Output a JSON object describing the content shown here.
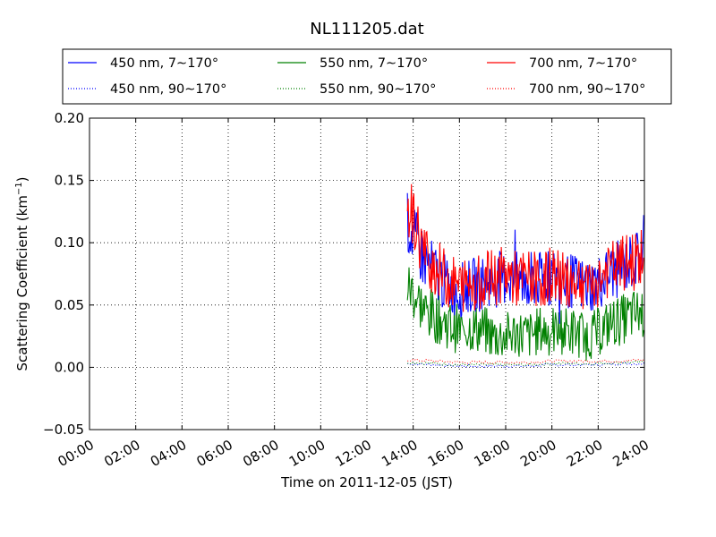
{
  "chart_data": {
    "type": "line",
    "title": "NL111205.dat",
    "xlabel": "Time on 2011-12-05 (JST)",
    "ylabel": "Scattering Coefficient (km",
    "ylabel_sup": "−1",
    "ylabel_end": ")",
    "xlim": [
      "00:00",
      "24:00"
    ],
    "ylim": [
      -0.05,
      0.2
    ],
    "grid": true,
    "legend_position": "top",
    "x_ticks": [
      "00:00",
      "02:00",
      "04:00",
      "06:00",
      "08:00",
      "10:00",
      "12:00",
      "14:00",
      "16:00",
      "18:00",
      "20:00",
      "22:00",
      "24:00"
    ],
    "y_ticks": [
      "−0.05",
      "0.00",
      "0.05",
      "0.10",
      "0.15",
      "0.20"
    ],
    "series": [
      {
        "name": "450 nm, 7∼170°",
        "color": "#0000ff",
        "style": "solid",
        "x": [
          "13:45",
          "14:00",
          "14:30",
          "15:00",
          "15:30",
          "16:00",
          "16:30",
          "17:00",
          "17:30",
          "18:00",
          "18:30",
          "19:00",
          "19:30",
          "20:00",
          "20:30",
          "21:00",
          "21:30",
          "22:00",
          "22:30",
          "23:00",
          "23:30",
          "24:00"
        ],
        "y": [
          0.115,
          0.105,
          0.085,
          0.075,
          0.065,
          0.062,
          0.065,
          0.068,
          0.07,
          0.072,
          0.07,
          0.068,
          0.07,
          0.072,
          0.07,
          0.068,
          0.065,
          0.068,
          0.075,
          0.08,
          0.085,
          0.09
        ]
      },
      {
        "name": "550 nm, 7∼170°",
        "color": "#008000",
        "style": "solid",
        "x": [
          "13:45",
          "14:00",
          "14:30",
          "15:00",
          "15:30",
          "16:00",
          "16:30",
          "17:00",
          "17:30",
          "18:00",
          "18:30",
          "19:00",
          "19:30",
          "20:00",
          "20:30",
          "21:00",
          "21:30",
          "22:00",
          "22:30",
          "23:00",
          "23:30",
          "24:00"
        ],
        "y": [
          0.065,
          0.06,
          0.045,
          0.04,
          0.035,
          0.03,
          0.032,
          0.03,
          0.025,
          0.025,
          0.028,
          0.025,
          0.03,
          0.028,
          0.03,
          0.028,
          0.025,
          0.028,
          0.035,
          0.038,
          0.042,
          0.045
        ]
      },
      {
        "name": "700 nm, 7∼170°",
        "color": "#ff0000",
        "style": "solid",
        "x": [
          "13:45",
          "14:00",
          "14:30",
          "15:00",
          "15:30",
          "16:00",
          "16:30",
          "17:00",
          "17:30",
          "18:00",
          "18:30",
          "19:00",
          "19:30",
          "20:00",
          "20:30",
          "21:00",
          "21:30",
          "22:00",
          "22:30",
          "23:00",
          "23:30",
          "24:00"
        ],
        "y": [
          0.13,
          0.12,
          0.09,
          0.08,
          0.07,
          0.065,
          0.068,
          0.07,
          0.072,
          0.075,
          0.07,
          0.072,
          0.07,
          0.075,
          0.07,
          0.072,
          0.068,
          0.07,
          0.078,
          0.082,
          0.085,
          0.09
        ]
      },
      {
        "name": "450 nm, 90∼170°",
        "color": "#0000ff",
        "style": "dotted",
        "x": [
          "13:45",
          "15:00",
          "16:00",
          "17:00",
          "18:00",
          "19:00",
          "20:00",
          "21:00",
          "22:00",
          "23:00",
          "24:00"
        ],
        "y": [
          0.003,
          0.002,
          0.001,
          0.001,
          0.001,
          0.001,
          0.002,
          0.002,
          0.002,
          0.003,
          0.003
        ]
      },
      {
        "name": "550 nm, 90∼170°",
        "color": "#008000",
        "style": "dotted",
        "x": [
          "13:45",
          "15:00",
          "16:00",
          "17:00",
          "18:00",
          "19:00",
          "20:00",
          "21:00",
          "22:00",
          "23:00",
          "24:00"
        ],
        "y": [
          0.004,
          0.003,
          0.002,
          0.002,
          0.002,
          0.002,
          0.003,
          0.003,
          0.003,
          0.004,
          0.004
        ]
      },
      {
        "name": "700 nm, 90∼170°",
        "color": "#ff0000",
        "style": "dotted",
        "x": [
          "13:45",
          "15:00",
          "16:00",
          "17:00",
          "18:00",
          "19:00",
          "20:00",
          "21:00",
          "22:00",
          "23:00",
          "24:00"
        ],
        "y": [
          0.006,
          0.005,
          0.004,
          0.004,
          0.004,
          0.004,
          0.005,
          0.005,
          0.005,
          0.005,
          0.006
        ]
      }
    ]
  }
}
